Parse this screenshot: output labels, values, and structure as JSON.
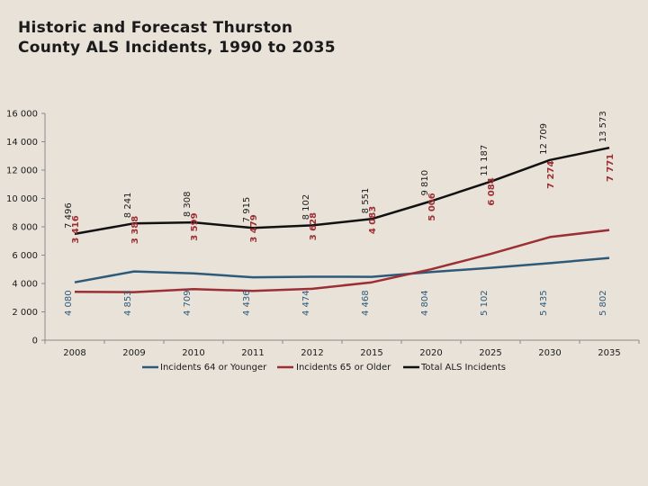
{
  "chart_data": {
    "type": "line",
    "title": "Historic and Forecast Thurston County ALS Incidents, 1990 to 2035",
    "title_lines": [
      "Historic and Forecast Thurston",
      "County ALS Incidents, 1990 to 2035"
    ],
    "categories": [
      "2008",
      "2009",
      "2010",
      "2011",
      "2012",
      "2015",
      "2020",
      "2025",
      "2030",
      "2035"
    ],
    "ylim": [
      0,
      16000
    ],
    "yticks": [
      0,
      2000,
      4000,
      6000,
      8000,
      10000,
      12000,
      14000,
      16000
    ],
    "ytick_labels": [
      "0",
      "2 000",
      "4 000",
      "6 000",
      "8 000",
      "10 000",
      "12 000",
      "14 000",
      "16 000"
    ],
    "grid": false,
    "legend_position": "bottom",
    "series": [
      {
        "name": "Incidents 64 or Younger",
        "color": "#2e5a7a",
        "values": [
          4080,
          4853,
          4709,
          4436,
          4474,
          4468,
          4804,
          5102,
          5435,
          5802
        ],
        "labels": [
          "4 080",
          "4 853",
          "4 709",
          "4 436",
          "4 474",
          "4 468",
          "4 804",
          "5 102",
          "5 435",
          "5 802"
        ]
      },
      {
        "name": "Incidents 65 or Older",
        "color": "#9c2f34",
        "values": [
          3416,
          3388,
          3599,
          3479,
          3628,
          4083,
          5006,
          6084,
          7274,
          7771
        ],
        "labels": [
          "3 416",
          "3 388",
          "3 599",
          "3 479",
          "3 628",
          "4 083",
          "5 006",
          "6 084",
          "7 274",
          "7 771"
        ]
      },
      {
        "name": "Total ALS Incidents",
        "color": "#111111",
        "values": [
          7496,
          8241,
          8308,
          7915,
          8102,
          8551,
          9810,
          11187,
          12709,
          13573
        ],
        "labels": [
          "7 496",
          "8 241",
          "8 308",
          "7 915",
          "8 102",
          "8 551",
          "9 810",
          "11 187",
          "12 709",
          "13 573"
        ]
      }
    ]
  }
}
